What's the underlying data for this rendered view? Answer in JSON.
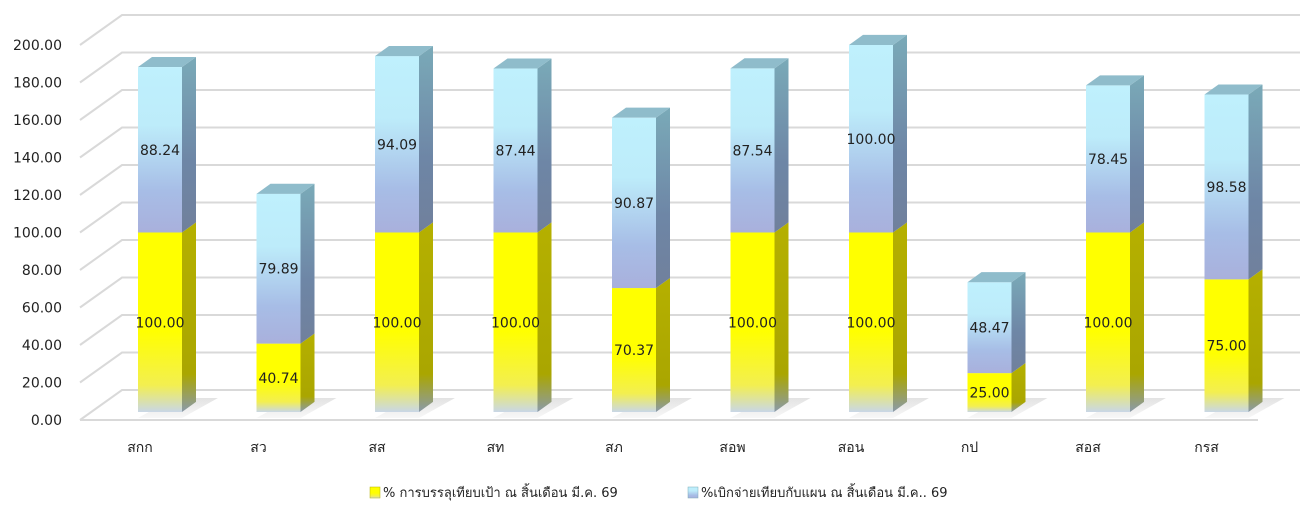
{
  "chart_data": {
    "type": "bar",
    "stacked": true,
    "categories": [
      "สกก",
      "สว",
      "สส",
      "สท",
      "สภ",
      "สอพ",
      "สอน",
      "กป",
      "สอส",
      "กรส"
    ],
    "series": [
      {
        "name": "% การบรรลุเทียบเป้า ณ สิ้นเดือน มี.ค. 69",
        "values": [
          100.0,
          40.74,
          100.0,
          100.0,
          70.37,
          100.0,
          100.0,
          25.0,
          100.0,
          75.0
        ],
        "labels": [
          "100.00",
          "40.74",
          "100.00",
          "100.00",
          "70.37",
          "100.00",
          "100.00",
          "25.00",
          "100.00",
          "75.00"
        ],
        "color": "#ffff00"
      },
      {
        "name": "%เบิกจ่ายเทียบกับแผน ณ สิ้นเดือน มี.ค.. 69",
        "values": [
          88.24,
          79.89,
          94.09,
          87.44,
          90.87,
          87.54,
          100.0,
          48.47,
          78.45,
          98.58
        ],
        "labels": [
          "88.24",
          "79.89",
          "94.09",
          "87.44",
          "90.87",
          "87.54",
          "100.00",
          "48.47",
          "78.45",
          "98.58"
        ],
        "color": "#b8ecfb"
      }
    ],
    "y_ticks": [
      "0.00",
      "20.00",
      "40.00",
      "60.00",
      "80.00",
      "100.00",
      "120.00",
      "140.00",
      "160.00",
      "180.00",
      "200.00"
    ],
    "ylim": [
      0,
      200
    ],
    "grid": true,
    "legend_position": "bottom",
    "style": "3d"
  }
}
